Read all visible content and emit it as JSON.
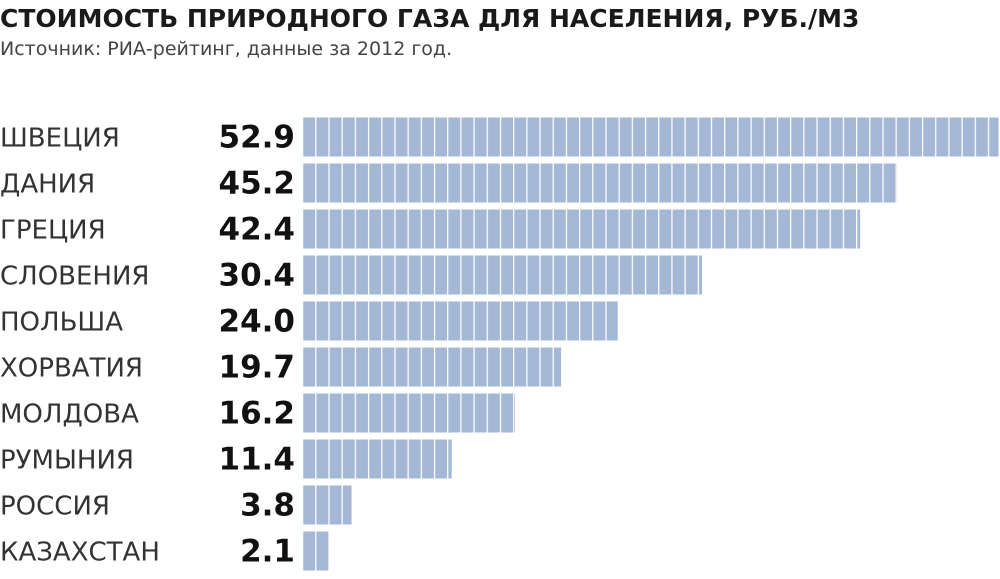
{
  "chart_data": {
    "type": "bar",
    "orientation": "horizontal",
    "title": "СТОИМОСТЬ ПРИРОДНОГО ГАЗА ДЛЯ НАСЕЛЕНИЯ, РУБ./М3",
    "subtitle": "Источник: РИА-рейтинг,  данные за 2012 год.",
    "categories": [
      "ШВЕЦИЯ",
      "ДАНИЯ",
      "ГРЕЦИЯ",
      "СЛОВЕНИЯ",
      "ПОЛЬША",
      "ХОРВАТИЯ",
      "МОЛДОВА",
      "РУМЫНИЯ",
      "РОССИЯ",
      "КАЗАХСТАН"
    ],
    "values": [
      52.9,
      45.2,
      42.4,
      30.4,
      24.0,
      19.7,
      16.2,
      11.4,
      3.8,
      2.1
    ],
    "value_labels": [
      "52.9",
      "45.2",
      "42.4",
      "30.4",
      "24.0",
      "19.7",
      "16.2",
      "11.4",
      "3.8",
      "2.1"
    ],
    "color": "#a4b7d5"
  }
}
